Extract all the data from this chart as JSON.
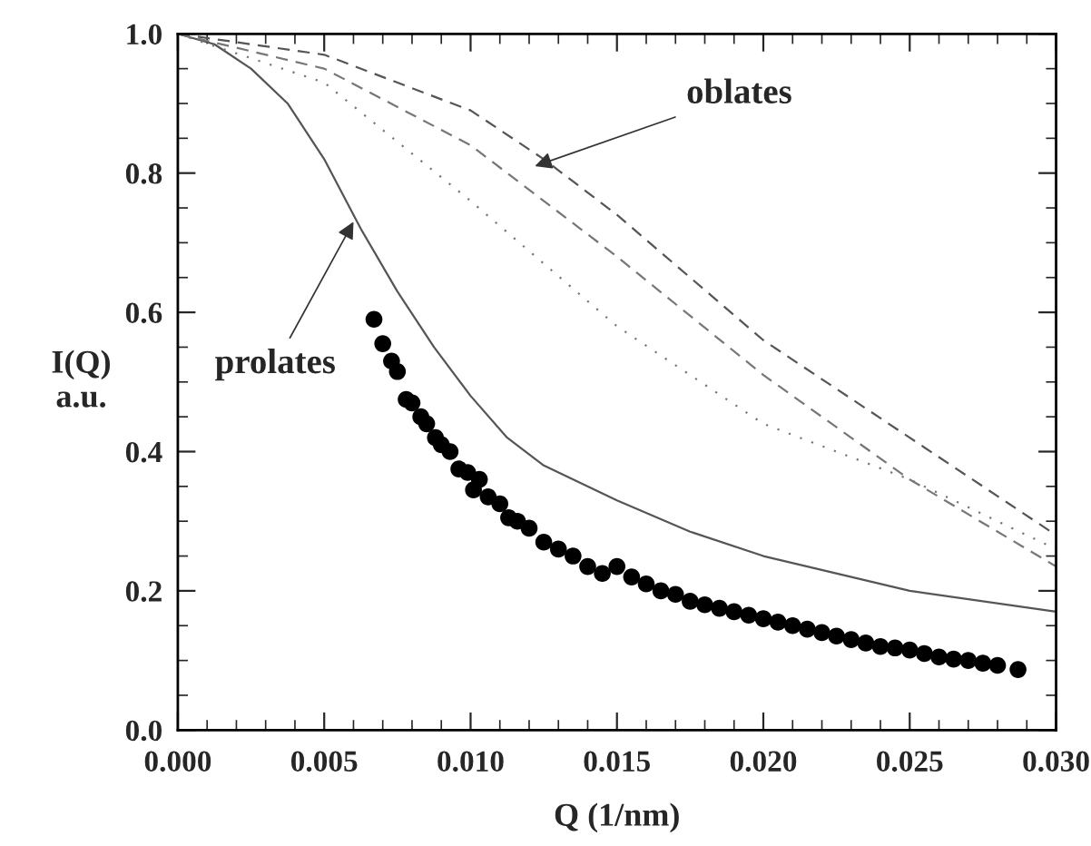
{
  "chart_data": {
    "type": "line",
    "xlabel": "Q (1/nm)",
    "ylabel": "I(Q)\na.u.",
    "xlim": [
      0,
      0.03
    ],
    "ylim": [
      0,
      1.0
    ],
    "xticks": [
      {
        "value": 0,
        "label": "0.000"
      },
      {
        "value": 0.005,
        "label": "0.005"
      },
      {
        "value": 0.01,
        "label": "0.010"
      },
      {
        "value": 0.015,
        "label": "0.015"
      },
      {
        "value": 0.02,
        "label": "0.020"
      },
      {
        "value": 0.025,
        "label": "0.025"
      },
      {
        "value": 0.03,
        "label": "0.030"
      }
    ],
    "yticks": [
      {
        "value": 0,
        "label": "0.0"
      },
      {
        "value": 0.2,
        "label": "0.2"
      },
      {
        "value": 0.4,
        "label": "0.4"
      },
      {
        "value": 0.6,
        "label": "0.6"
      },
      {
        "value": 0.8,
        "label": "0.8"
      },
      {
        "value": 1.0,
        "label": "1.0"
      }
    ],
    "grid": false,
    "legend": false,
    "series": [
      {
        "line_style": "solid",
        "color": "#555555",
        "x": [
          0,
          0.00125,
          0.0025,
          0.00375,
          0.005,
          0.00625,
          0.0075,
          0.00875,
          0.01,
          0.01125,
          0.0125,
          0.015,
          0.0175,
          0.02,
          0.025,
          0.03
        ],
        "values": [
          1.0,
          0.985,
          0.95,
          0.9,
          0.82,
          0.72,
          0.63,
          0.55,
          0.48,
          0.42,
          0.38,
          0.33,
          0.285,
          0.25,
          0.2,
          0.17
        ]
      },
      {
        "line_style": "dashed",
        "color": "#555555",
        "x": [
          0,
          0.005,
          0.01,
          0.0125,
          0.015,
          0.02,
          0.025,
          0.03
        ],
        "values": [
          1.0,
          0.97,
          0.89,
          0.82,
          0.74,
          0.56,
          0.42,
          0.28
        ]
      },
      {
        "line_style": "dashed",
        "color": "#777777",
        "x": [
          0,
          0.005,
          0.01,
          0.0125,
          0.015,
          0.02,
          0.025,
          0.03
        ],
        "values": [
          1.0,
          0.95,
          0.84,
          0.76,
          0.68,
          0.51,
          0.36,
          0.235
        ]
      },
      {
        "line_style": "dotted",
        "color": "#777777",
        "x": [
          0,
          0.005,
          0.01,
          0.015,
          0.02,
          0.025,
          0.03
        ],
        "values": [
          1.0,
          0.93,
          0.76,
          0.58,
          0.44,
          0.36,
          0.26
        ]
      },
      {
        "type": "scatter",
        "marker": "circle",
        "color": "#000000",
        "x": [
          0.0067,
          0.007,
          0.0073,
          0.0075,
          0.0078,
          0.008,
          0.0083,
          0.0085,
          0.0088,
          0.009,
          0.0093,
          0.0096,
          0.0099,
          0.0101,
          0.0103,
          0.0106,
          0.011,
          0.0113,
          0.0116,
          0.012,
          0.0125,
          0.013,
          0.0135,
          0.014,
          0.0145,
          0.015,
          0.0155,
          0.016,
          0.0165,
          0.017,
          0.0175,
          0.018,
          0.0185,
          0.019,
          0.0195,
          0.02,
          0.0205,
          0.021,
          0.0215,
          0.022,
          0.0225,
          0.023,
          0.0235,
          0.024,
          0.0245,
          0.025,
          0.0255,
          0.026,
          0.0265,
          0.027,
          0.0275,
          0.028,
          0.0287
        ],
        "values": [
          0.59,
          0.555,
          0.53,
          0.515,
          0.475,
          0.47,
          0.45,
          0.44,
          0.42,
          0.41,
          0.4,
          0.375,
          0.37,
          0.345,
          0.36,
          0.335,
          0.325,
          0.305,
          0.3,
          0.29,
          0.27,
          0.26,
          0.25,
          0.235,
          0.225,
          0.235,
          0.22,
          0.21,
          0.2,
          0.195,
          0.185,
          0.18,
          0.175,
          0.17,
          0.165,
          0.16,
          0.155,
          0.15,
          0.145,
          0.14,
          0.135,
          0.13,
          0.125,
          0.12,
          0.118,
          0.115,
          0.11,
          0.105,
          0.102,
          0.1,
          0.096,
          0.093,
          0.087
        ]
      }
    ],
    "annotations": [
      {
        "text": "oblates",
        "x": 0.0122,
        "y": 0.81
      },
      {
        "text": "prolates",
        "x": 0.006,
        "y": 0.73
      }
    ]
  }
}
